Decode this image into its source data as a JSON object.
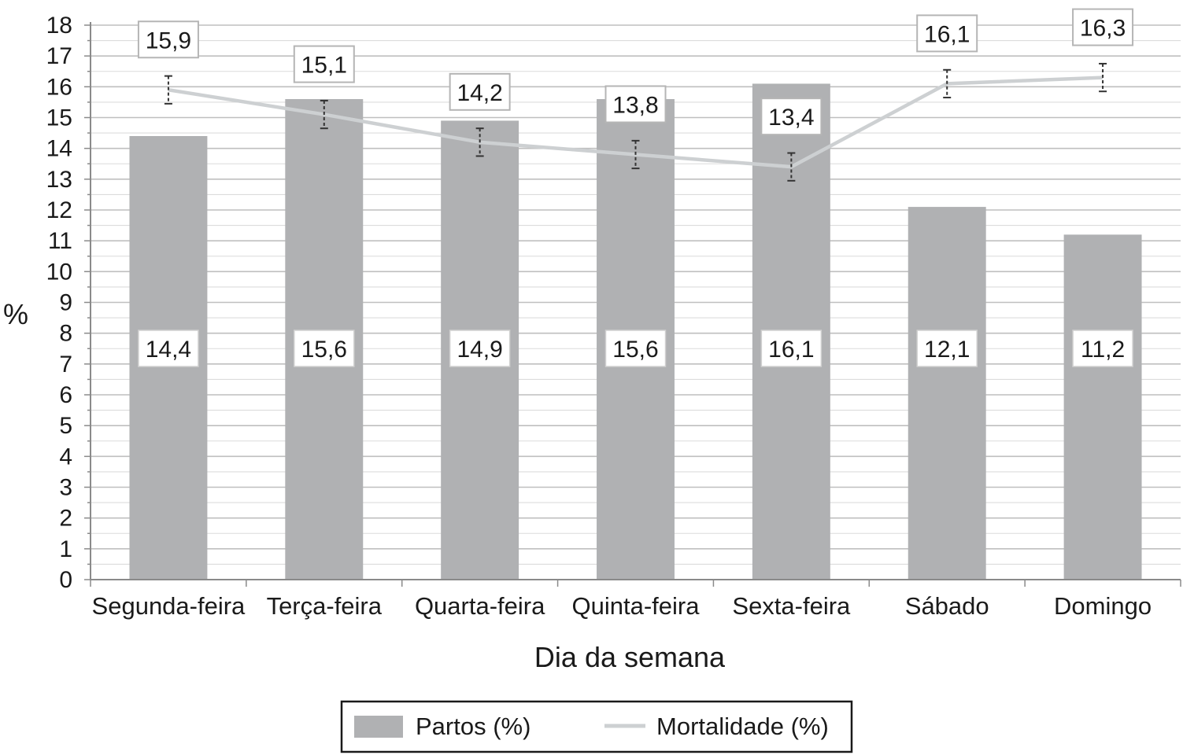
{
  "chart_data": {
    "type": "bar",
    "title": "",
    "xlabel": "Dia da semana",
    "ylabel": "%",
    "ylim": [
      0,
      18
    ],
    "yticks": [
      "0",
      "1",
      "2",
      "3",
      "4",
      "5",
      "6",
      "7",
      "8",
      "9",
      "10",
      "11",
      "12",
      "13",
      "14",
      "15",
      "16",
      "17",
      "18"
    ],
    "grid": "horizontal",
    "legend_position": "bottom",
    "categories": [
      "Segunda-feira",
      "Terça-feira",
      "Quarta-feira",
      "Quinta-feira",
      "Sexta-feira",
      "Sábado",
      "Domingo"
    ],
    "series": [
      {
        "name": "Partos (%)",
        "type": "bar",
        "color": "#b0b1b3",
        "values": [
          14.4,
          15.6,
          14.9,
          15.6,
          16.1,
          12.1,
          11.2
        ],
        "labels": [
          "14,4",
          "15,6",
          "14,9",
          "15,6",
          "16,1",
          "12,1",
          "11,2"
        ]
      },
      {
        "name": "Mortalidade (%)",
        "type": "line",
        "color": "#cdd0d2",
        "values": [
          15.9,
          15.1,
          14.2,
          13.8,
          13.4,
          16.1,
          16.3
        ],
        "labels": [
          "15,9",
          "15,1",
          "14,2",
          "13,8",
          "13,4",
          "16,1",
          "16,3"
        ],
        "error": [
          0.45,
          0.45,
          0.45,
          0.45,
          0.45,
          0.45,
          0.45
        ]
      }
    ]
  }
}
